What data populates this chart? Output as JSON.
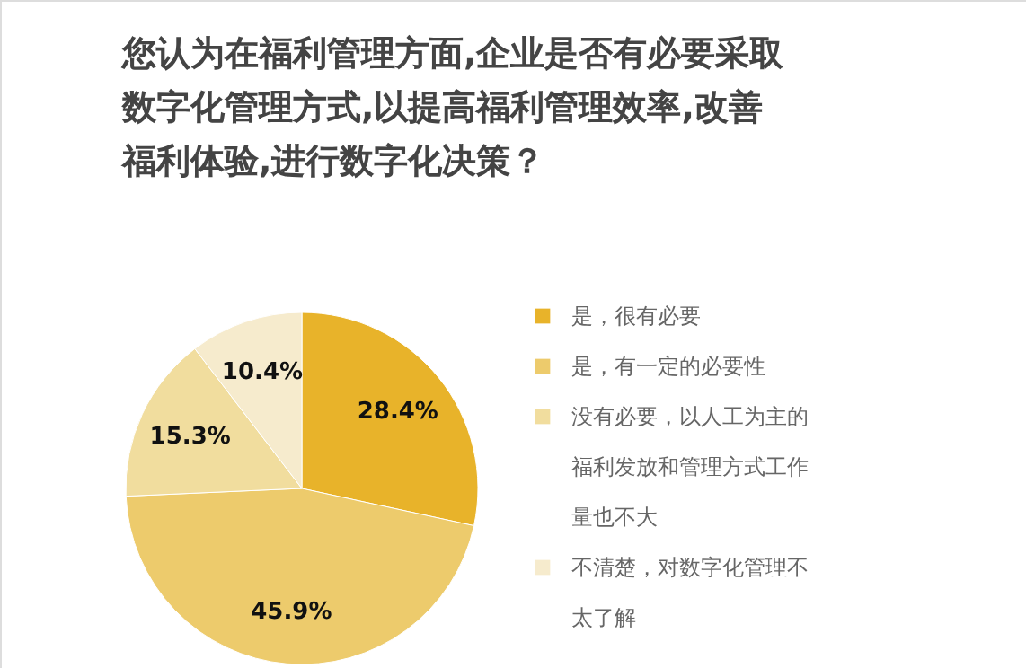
{
  "chart_data": {
    "type": "pie",
    "title": "您认为在福利管理方面,企业是否有必要采取数字化管理方式,以提高福利管理效率,改善福利体验,进行数字化决策？",
    "categories": [
      "是，很有必要",
      "是，有一定的必要性",
      "没有必要，以人工为主的福利发放和管理方式工作量也不大",
      "不清楚，对数字化管理不太了解"
    ],
    "values": [
      28.4,
      45.9,
      15.3,
      10.4
    ],
    "value_labels": [
      "28.4%",
      "45.9%",
      "15.3%",
      "10.4%"
    ],
    "colors": [
      "#e8b32a",
      "#edcb6c",
      "#f1dd9e",
      "#f6ebcd"
    ],
    "legend": "right"
  }
}
